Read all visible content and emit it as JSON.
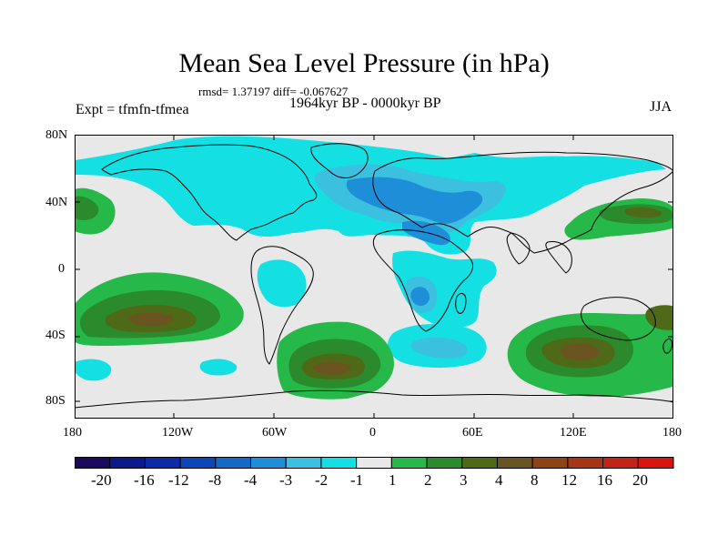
{
  "title": "Mean Sea Level Pressure (in hPa)",
  "stats": "rmsd= 1.37197 diff= -0.067627",
  "experiment": "Expt = tfmfn-tfmea",
  "period": "1964kyr BP - 0000kyr BP",
  "season": "JJA",
  "lat_labels": [
    "80N",
    "40N",
    "0",
    "40S",
    "80S"
  ],
  "lon_labels": [
    "180",
    "120W",
    "60W",
    "0",
    "60E",
    "120E",
    "180"
  ],
  "colorbar": {
    "labels": [
      "-20",
      "-16",
      "-12",
      "-8",
      "-4",
      "-3",
      "-2",
      "-1",
      "1",
      "2",
      "3",
      "4",
      "8",
      "12",
      "16",
      "20"
    ],
    "colors": [
      "#1a0a5e",
      "#0a1a8c",
      "#0a2aa8",
      "#0c46b8",
      "#1468c8",
      "#1e8ed8",
      "#3cc0e0",
      "#14e0e4",
      "#e8e8e8",
      "#26b848",
      "#2a8a2c",
      "#4e6a18",
      "#6a5420",
      "#8a4418",
      "#a83418",
      "#c42418",
      "#d81410"
    ]
  },
  "colors": {
    "land_coast": "#000000",
    "ocean_bg": "#e8e8e8",
    "cyan": "#14e0e4",
    "light_blue": "#3cc0e0",
    "mid_blue": "#1e8ed8",
    "green": "#26b848",
    "dark_green": "#2a8a2c",
    "olive": "#4e6a18",
    "brown": "#6a5420"
  }
}
